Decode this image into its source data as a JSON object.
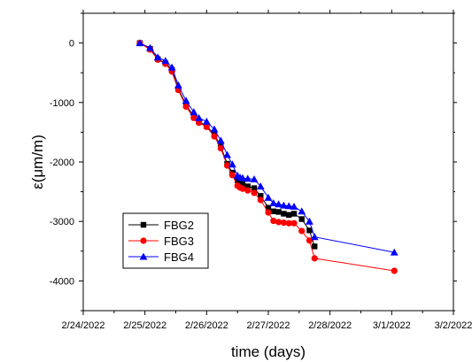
{
  "chart_data": {
    "type": "line",
    "title": "",
    "xlabel": "time (days)",
    "ylabel": "ε(μm/m)",
    "x_axis_type": "date",
    "xlim": [
      "2022-02-24",
      "2022-03-02"
    ],
    "ylim": [
      -4500,
      500
    ],
    "x_ticks": [
      {
        "value": "2022-02-24",
        "label": "2/24/2022"
      },
      {
        "value": "2022-02-25",
        "label": "2/25/2022"
      },
      {
        "value": "2022-02-26",
        "label": "2/26/2022"
      },
      {
        "value": "2022-02-27",
        "label": "2/27/2022"
      },
      {
        "value": "2022-02-28",
        "label": "2/28/2022"
      },
      {
        "value": "2022-03-01",
        "label": "3/1/2022"
      },
      {
        "value": "2022-03-02",
        "label": "3/2/2022"
      }
    ],
    "y_ticks": [
      {
        "value": 0,
        "label": "0"
      },
      {
        "value": -1000,
        "label": "-1000"
      },
      {
        "value": -2000,
        "label": "-2000"
      },
      {
        "value": -3000,
        "label": "-3000"
      },
      {
        "value": -4000,
        "label": "-4000"
      }
    ],
    "grid": false,
    "legend_position": "bottom-left",
    "series": [
      {
        "name": "FBG2",
        "color": "#000000",
        "marker": "square",
        "points": [
          {
            "x": "2022-02-24 22:00",
            "y": 0
          },
          {
            "x": "2022-02-25 02:00",
            "y": -100
          },
          {
            "x": "2022-02-25 05:00",
            "y": -270
          },
          {
            "x": "2022-02-25 08:00",
            "y": -340
          },
          {
            "x": "2022-02-25 10:30",
            "y": -450
          },
          {
            "x": "2022-02-25 13:00",
            "y": -770
          },
          {
            "x": "2022-02-25 16:00",
            "y": -1040
          },
          {
            "x": "2022-02-25 19:00",
            "y": -1230
          },
          {
            "x": "2022-02-25 21:00",
            "y": -1320
          },
          {
            "x": "2022-02-26 00:00",
            "y": -1400
          },
          {
            "x": "2022-02-26 03:00",
            "y": -1530
          },
          {
            "x": "2022-02-26 05:30",
            "y": -1740
          },
          {
            "x": "2022-02-26 08:00",
            "y": -2030
          },
          {
            "x": "2022-02-26 10:00",
            "y": -2180
          },
          {
            "x": "2022-02-26 12:00",
            "y": -2310
          },
          {
            "x": "2022-02-26 13:00",
            "y": -2360
          },
          {
            "x": "2022-02-26 14:00",
            "y": -2370
          },
          {
            "x": "2022-02-26 16:00",
            "y": -2410
          },
          {
            "x": "2022-02-26 18:30",
            "y": -2440
          },
          {
            "x": "2022-02-26 21:00",
            "y": -2570
          },
          {
            "x": "2022-02-27 00:00",
            "y": -2770
          },
          {
            "x": "2022-02-27 02:00",
            "y": -2830
          },
          {
            "x": "2022-02-27 04:00",
            "y": -2840
          },
          {
            "x": "2022-02-27 06:00",
            "y": -2870
          },
          {
            "x": "2022-02-27 08:00",
            "y": -2890
          },
          {
            "x": "2022-02-27 10:00",
            "y": -2870
          },
          {
            "x": "2022-02-27 13:00",
            "y": -2960
          },
          {
            "x": "2022-02-27 16:00",
            "y": -3150
          },
          {
            "x": "2022-02-27 18:00",
            "y": -3420
          }
        ]
      },
      {
        "name": "FBG3",
        "color": "#ff0000",
        "marker": "circle",
        "points": [
          {
            "x": "2022-02-24 22:00",
            "y": 0
          },
          {
            "x": "2022-02-25 02:00",
            "y": -110
          },
          {
            "x": "2022-02-25 05:00",
            "y": -280
          },
          {
            "x": "2022-02-25 08:00",
            "y": -350
          },
          {
            "x": "2022-02-25 10:30",
            "y": -480
          },
          {
            "x": "2022-02-25 13:00",
            "y": -790
          },
          {
            "x": "2022-02-25 16:00",
            "y": -1070
          },
          {
            "x": "2022-02-25 19:00",
            "y": -1260
          },
          {
            "x": "2022-02-25 21:00",
            "y": -1340
          },
          {
            "x": "2022-02-26 00:00",
            "y": -1410
          },
          {
            "x": "2022-02-26 03:00",
            "y": -1570
          },
          {
            "x": "2022-02-26 05:30",
            "y": -1770
          },
          {
            "x": "2022-02-26 08:00",
            "y": -2060
          },
          {
            "x": "2022-02-26 10:00",
            "y": -2220
          },
          {
            "x": "2022-02-26 12:00",
            "y": -2400
          },
          {
            "x": "2022-02-26 13:00",
            "y": -2430
          },
          {
            "x": "2022-02-26 14:00",
            "y": -2450
          },
          {
            "x": "2022-02-26 16:00",
            "y": -2480
          },
          {
            "x": "2022-02-26 18:30",
            "y": -2520
          },
          {
            "x": "2022-02-26 21:00",
            "y": -2640
          },
          {
            "x": "2022-02-27 00:00",
            "y": -2850
          },
          {
            "x": "2022-02-27 02:00",
            "y": -2990
          },
          {
            "x": "2022-02-27 04:00",
            "y": -3010
          },
          {
            "x": "2022-02-27 06:00",
            "y": -3020
          },
          {
            "x": "2022-02-27 08:00",
            "y": -3030
          },
          {
            "x": "2022-02-27 10:00",
            "y": -3030
          },
          {
            "x": "2022-02-27 13:00",
            "y": -3160
          },
          {
            "x": "2022-02-27 16:00",
            "y": -3320
          },
          {
            "x": "2022-02-27 18:00",
            "y": -3620
          },
          {
            "x": "2022-03-01 01:00",
            "y": -3830
          }
        ]
      },
      {
        "name": "FBG4",
        "color": "#0000ff",
        "marker": "triangle",
        "points": [
          {
            "x": "2022-02-24 22:00",
            "y": 0
          },
          {
            "x": "2022-02-25 02:00",
            "y": -80
          },
          {
            "x": "2022-02-25 05:00",
            "y": -240
          },
          {
            "x": "2022-02-25 08:00",
            "y": -300
          },
          {
            "x": "2022-02-25 10:30",
            "y": -410
          },
          {
            "x": "2022-02-25 13:00",
            "y": -710
          },
          {
            "x": "2022-02-25 16:00",
            "y": -970
          },
          {
            "x": "2022-02-25 19:00",
            "y": -1160
          },
          {
            "x": "2022-02-25 21:00",
            "y": -1260
          },
          {
            "x": "2022-02-26 00:00",
            "y": -1320
          },
          {
            "x": "2022-02-26 03:00",
            "y": -1450
          },
          {
            "x": "2022-02-26 05:30",
            "y": -1640
          },
          {
            "x": "2022-02-26 08:00",
            "y": -1880
          },
          {
            "x": "2022-02-26 10:00",
            "y": -2040
          },
          {
            "x": "2022-02-26 12:00",
            "y": -2230
          },
          {
            "x": "2022-02-26 13:00",
            "y": -2260
          },
          {
            "x": "2022-02-26 14:00",
            "y": -2270
          },
          {
            "x": "2022-02-26 16:00",
            "y": -2280
          },
          {
            "x": "2022-02-26 18:30",
            "y": -2290
          },
          {
            "x": "2022-02-26 21:00",
            "y": -2410
          },
          {
            "x": "2022-02-27 00:00",
            "y": -2600
          },
          {
            "x": "2022-02-27 02:00",
            "y": -2690
          },
          {
            "x": "2022-02-27 04:00",
            "y": -2710
          },
          {
            "x": "2022-02-27 06:00",
            "y": -2730
          },
          {
            "x": "2022-02-27 08:00",
            "y": -2740
          },
          {
            "x": "2022-02-27 10:00",
            "y": -2750
          },
          {
            "x": "2022-02-27 13:00",
            "y": -2830
          },
          {
            "x": "2022-02-27 16:00",
            "y": -3000
          },
          {
            "x": "2022-02-27 18:00",
            "y": -3260
          },
          {
            "x": "2022-03-01 01:00",
            "y": -3520
          }
        ]
      }
    ]
  }
}
